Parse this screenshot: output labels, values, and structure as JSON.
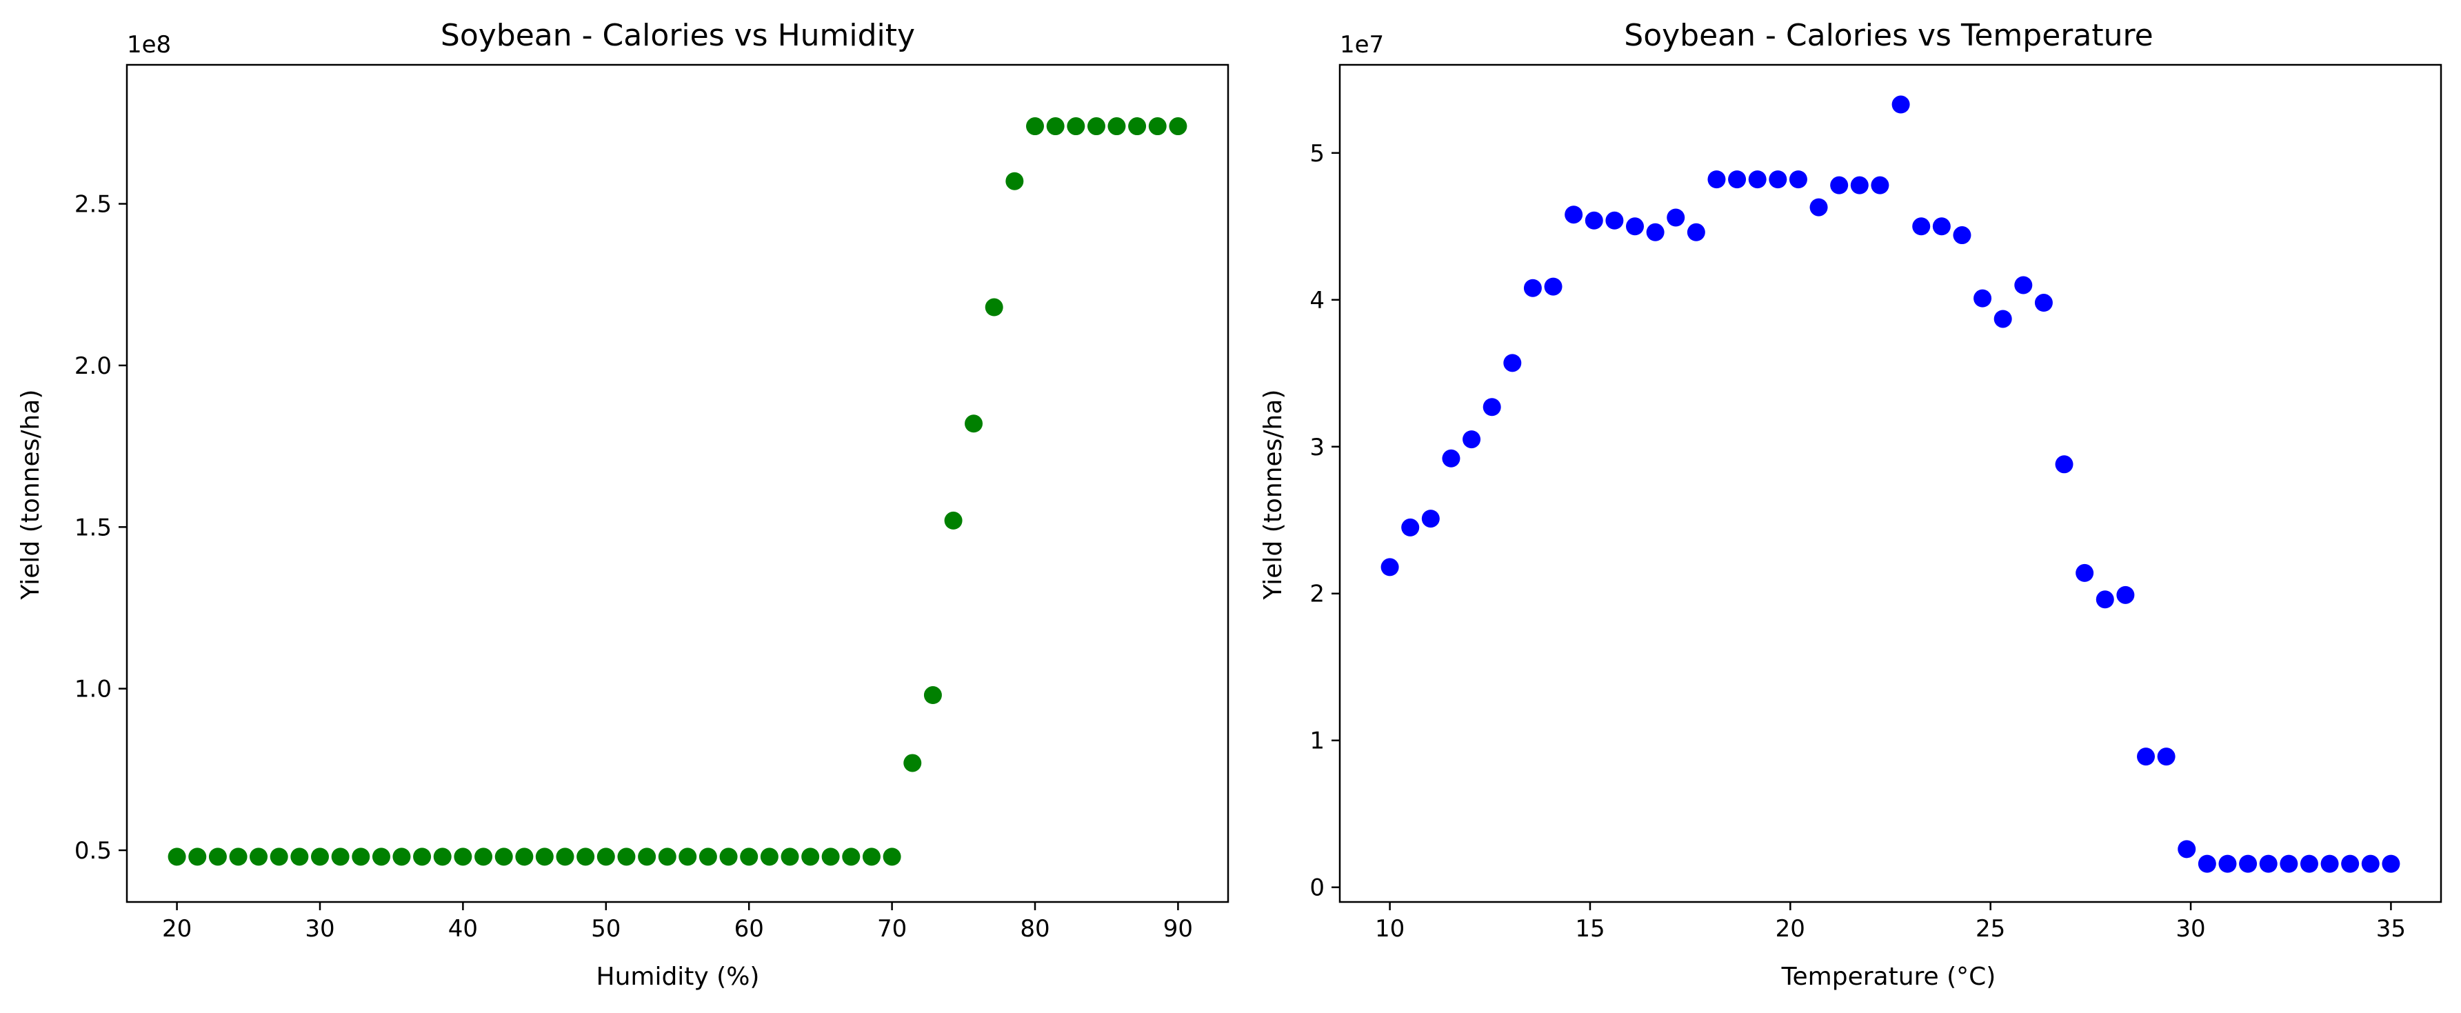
{
  "chart_data": [
    {
      "type": "scatter",
      "title": "Soybean - Calories vs Humidity",
      "xlabel": "Humidity (%)",
      "ylabel": "Yield (tonnes/ha)",
      "y_offset_label": "1e8",
      "y_scale": 100000000,
      "color": "#008000",
      "xlim": [
        16.5,
        93.5
      ],
      "ylim": [
        0.34,
        2.93
      ],
      "x_ticks": [
        20,
        30,
        40,
        50,
        60,
        70,
        80,
        90
      ],
      "y_ticks": [
        0.5,
        1.0,
        1.5,
        2.0,
        2.5
      ],
      "y_tick_labels": [
        "0.5",
        "1.0",
        "1.5",
        "2.0",
        "2.5"
      ],
      "grid": false,
      "x": [
        20,
        21.43,
        22.86,
        24.29,
        25.71,
        27.14,
        28.57,
        30,
        31.43,
        32.86,
        34.29,
        35.71,
        37.14,
        38.57,
        40,
        41.43,
        42.86,
        44.29,
        45.71,
        47.14,
        48.57,
        50,
        51.43,
        52.86,
        54.29,
        55.71,
        57.14,
        58.57,
        60,
        61.43,
        62.86,
        64.29,
        65.71,
        67.14,
        68.57,
        70,
        71.43,
        72.86,
        74.29,
        75.71,
        77.14,
        78.57,
        80,
        81.43,
        82.86,
        84.29,
        85.71,
        87.14,
        88.57,
        90
      ],
      "y": [
        0.48,
        0.48,
        0.48,
        0.48,
        0.48,
        0.48,
        0.48,
        0.48,
        0.48,
        0.48,
        0.48,
        0.48,
        0.48,
        0.48,
        0.48,
        0.48,
        0.48,
        0.48,
        0.48,
        0.48,
        0.48,
        0.48,
        0.48,
        0.48,
        0.48,
        0.48,
        0.48,
        0.48,
        0.48,
        0.48,
        0.48,
        0.48,
        0.48,
        0.48,
        0.48,
        0.48,
        0.77,
        0.98,
        1.52,
        1.82,
        2.18,
        2.57,
        2.74,
        2.74,
        2.74,
        2.74,
        2.74,
        2.74,
        2.74,
        2.74
      ]
    },
    {
      "type": "scatter",
      "title": "Soybean - Calories vs Temperature",
      "xlabel": "Temperature (°C)",
      "ylabel": "Yield (tonnes/ha)",
      "y_offset_label": "1e7",
      "y_scale": 10000000,
      "color": "#0000ff",
      "xlim": [
        8.75,
        36.25
      ],
      "ylim": [
        -0.1,
        5.6
      ],
      "x_ticks": [
        10,
        15,
        20,
        25,
        30,
        35
      ],
      "y_ticks": [
        0,
        1,
        2,
        3,
        4,
        5
      ],
      "y_tick_labels": [
        "0",
        "1",
        "2",
        "3",
        "4",
        "5"
      ],
      "grid": false,
      "x": [
        10,
        10.51,
        11.02,
        11.53,
        12.04,
        12.55,
        13.06,
        13.57,
        14.08,
        14.59,
        15.1,
        15.61,
        16.12,
        16.63,
        17.14,
        17.65,
        18.16,
        18.67,
        19.18,
        19.69,
        20.2,
        20.71,
        21.22,
        21.73,
        22.24,
        22.76,
        23.27,
        23.78,
        24.29,
        24.8,
        25.31,
        25.82,
        26.33,
        26.84,
        27.35,
        27.86,
        28.37,
        28.88,
        29.39,
        29.9,
        30.41,
        30.92,
        31.43,
        31.94,
        32.45,
        32.96,
        33.47,
        33.98,
        34.49,
        35
      ],
      "y": [
        2.18,
        2.45,
        2.51,
        2.92,
        3.05,
        3.27,
        3.57,
        4.08,
        4.09,
        4.58,
        4.54,
        4.54,
        4.5,
        4.46,
        4.56,
        4.46,
        4.82,
        4.82,
        4.82,
        4.82,
        4.82,
        4.63,
        4.78,
        4.78,
        4.78,
        5.33,
        4.5,
        4.5,
        4.44,
        4.01,
        3.87,
        4.1,
        3.98,
        2.88,
        2.14,
        1.96,
        1.99,
        0.89,
        0.89,
        0.26,
        0.16,
        0.16,
        0.16,
        0.16,
        0.16,
        0.16,
        0.16,
        0.16,
        0.16,
        0.16
      ]
    }
  ]
}
